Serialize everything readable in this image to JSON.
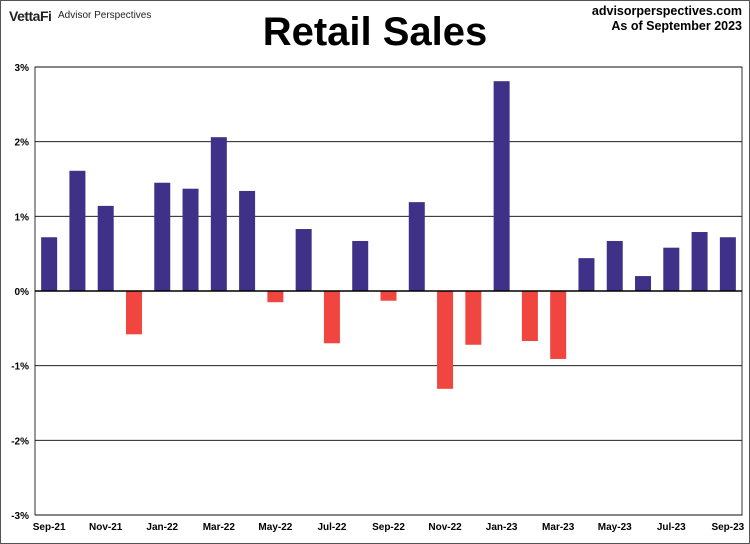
{
  "header": {
    "brand": "VettaFi",
    "brand_sub": "Advisor Perspectives",
    "site": "advisorperspectives.com",
    "as_of": "As of September 2023"
  },
  "chart_data": {
    "type": "bar",
    "title": "Retail Sales",
    "xlabel": "",
    "ylabel": "",
    "ylim": [
      -3,
      3
    ],
    "yticks": [
      "-3%",
      "-2%",
      "-1%",
      "0%",
      "1%",
      "2%",
      "3%"
    ],
    "grid": true,
    "categories": [
      "Sep-21",
      "Oct-21",
      "Nov-21",
      "Dec-21",
      "Jan-22",
      "Feb-22",
      "Mar-22",
      "Apr-22",
      "May-22",
      "Jun-22",
      "Jul-22",
      "Aug-22",
      "Sep-22",
      "Oct-22",
      "Nov-22",
      "Dec-22",
      "Jan-23",
      "Feb-23",
      "Mar-23",
      "Apr-23",
      "May-23",
      "Jun-23",
      "Jul-23",
      "Aug-23",
      "Sep-23"
    ],
    "xtick_labels": [
      "Sep-21",
      "Nov-21",
      "Jan-22",
      "Mar-22",
      "May-22",
      "Jul-22",
      "Sep-22",
      "Nov-22",
      "Jan-23",
      "Mar-23",
      "May-23",
      "Jul-23",
      "Sep-23"
    ],
    "values": [
      0.72,
      1.61,
      1.14,
      -0.58,
      1.45,
      1.37,
      2.06,
      1.34,
      -0.15,
      0.83,
      -0.7,
      0.67,
      -0.13,
      1.19,
      -1.31,
      -0.72,
      2.81,
      -0.67,
      -0.91,
      0.44,
      0.67,
      0.2,
      0.58,
      0.79,
      0.72
    ],
    "colors": {
      "positive": "#3f3187",
      "negative": "#f0463f"
    }
  }
}
